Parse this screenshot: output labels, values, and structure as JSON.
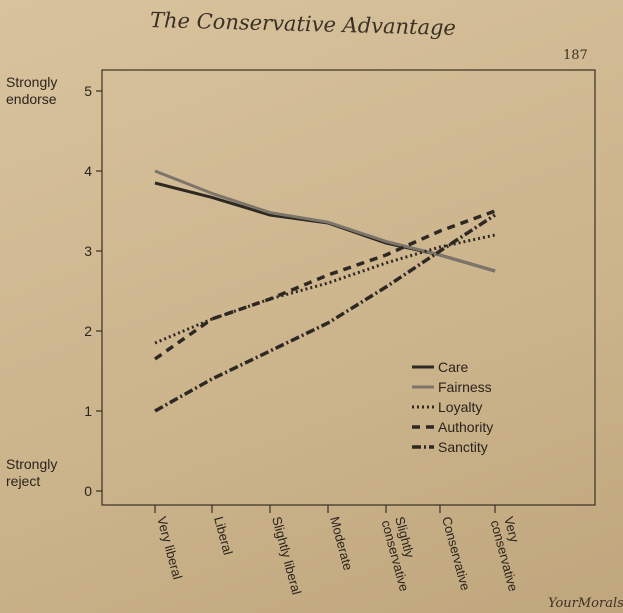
{
  "page": {
    "running_head": "The Conservative Advantage",
    "page_number": "187",
    "footer_fragment": "YourMorals"
  },
  "chart_data": {
    "type": "line",
    "title": "",
    "xlabel": "",
    "ylabel": "",
    "ylim": [
      0,
      5
    ],
    "yticks": [
      0,
      1,
      2,
      3,
      4,
      5
    ],
    "ytick_labels_extra": {
      "top": "Strongly endorse",
      "bottom": "Strongly reject"
    },
    "categories": [
      "Very liberal",
      "Liberal",
      "Slightly liberal",
      "Moderate",
      "Slightly conservative",
      "Conservative",
      "Very conservative"
    ],
    "legend_position": "bottom-right",
    "grid": false,
    "series": [
      {
        "name": "Care",
        "style": "solid",
        "color": "#2e2823",
        "values": [
          3.85,
          3.67,
          3.45,
          3.35,
          3.1,
          2.95,
          2.75
        ]
      },
      {
        "name": "Fairness",
        "style": "solid-light",
        "color": "#7d756a",
        "values": [
          4.0,
          3.72,
          3.48,
          3.36,
          3.12,
          2.95,
          2.75
        ]
      },
      {
        "name": "Loyalty",
        "style": "dotted",
        "color": "#2e2823",
        "values": [
          1.85,
          2.15,
          2.4,
          2.6,
          2.85,
          3.05,
          3.2
        ]
      },
      {
        "name": "Authority",
        "style": "dashed",
        "color": "#2e2823",
        "values": [
          1.65,
          2.15,
          2.4,
          2.7,
          2.95,
          3.25,
          3.5
        ]
      },
      {
        "name": "Sanctity",
        "style": "dashdot",
        "color": "#2e2823",
        "values": [
          1.0,
          1.4,
          1.75,
          2.1,
          2.55,
          3.0,
          3.45
        ]
      }
    ]
  }
}
